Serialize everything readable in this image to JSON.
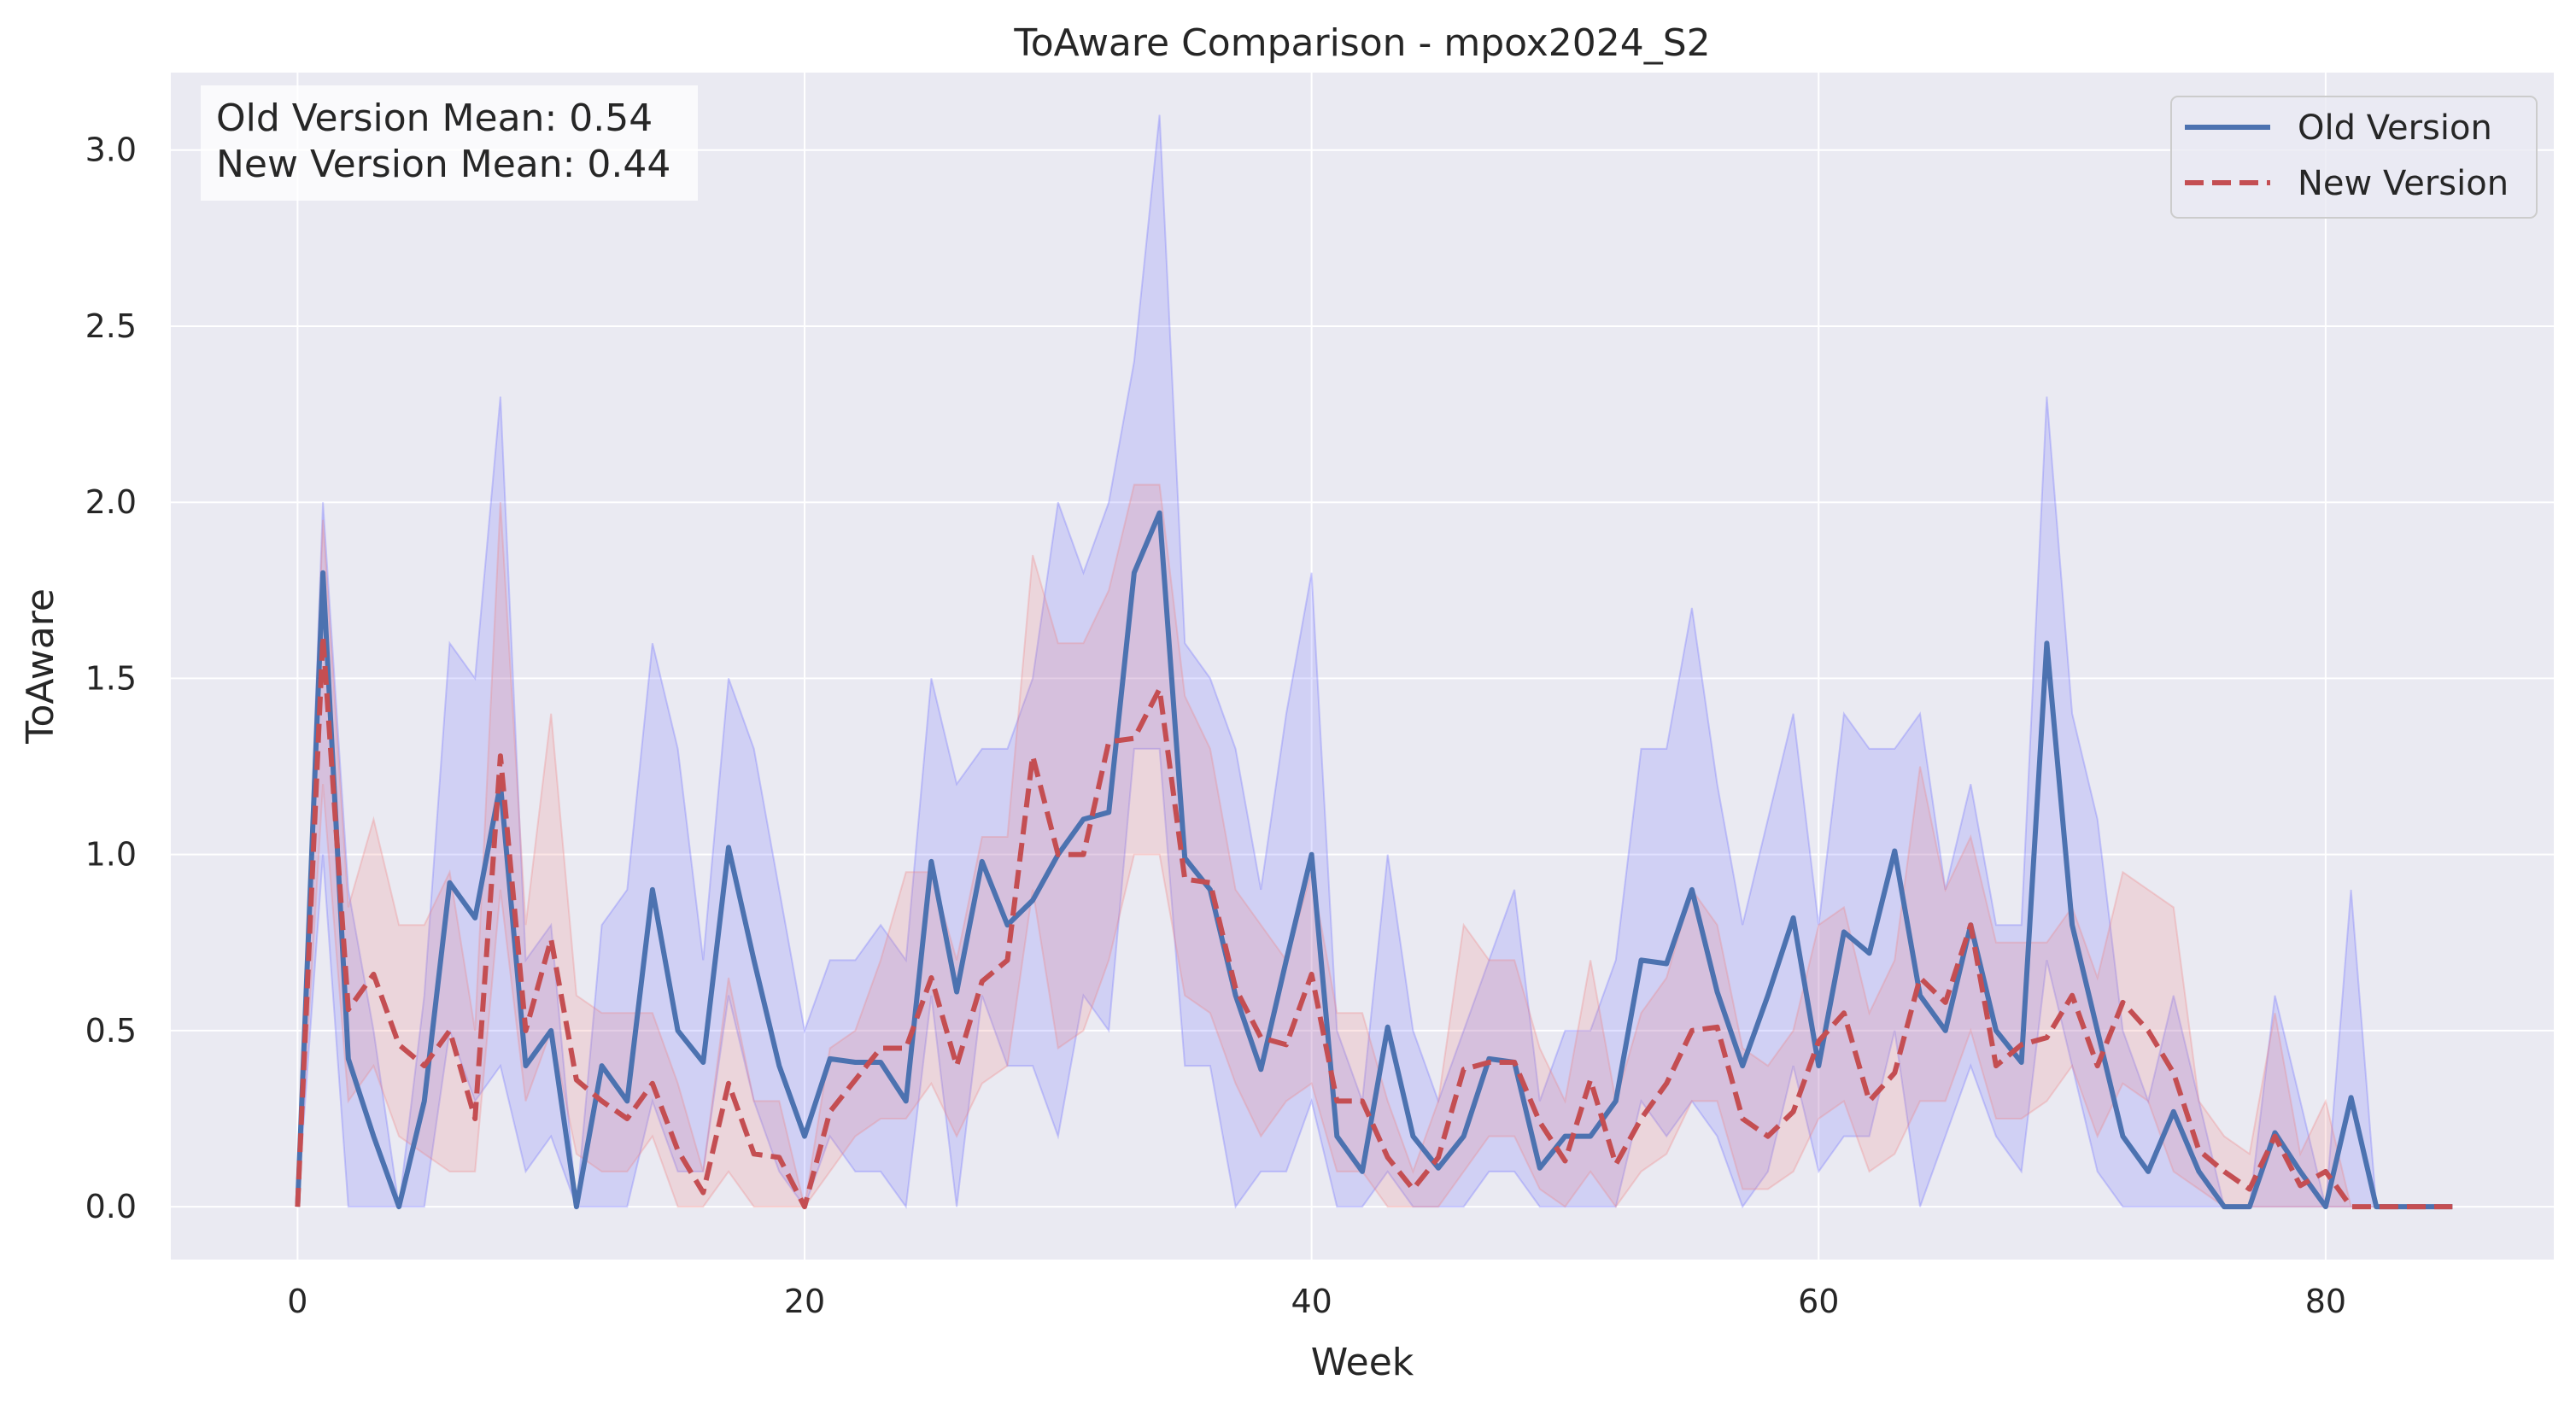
{
  "chart_data": {
    "type": "line",
    "title": "ToAware Comparison - mpox2024_S2",
    "xlabel": "Week",
    "ylabel": "ToAware",
    "xlim": [
      -5,
      89
    ],
    "ylim": [
      -0.15,
      3.22
    ],
    "xticks": [
      0,
      20,
      40,
      60,
      80
    ],
    "yticks": [
      0.0,
      0.5,
      1.0,
      1.5,
      2.0,
      2.5,
      3.0
    ],
    "grid": true,
    "legend_position": "top-right",
    "annotations": [
      "Old Version Mean: 0.54",
      "New Version Mean: 0.44"
    ],
    "x": [
      0,
      1,
      2,
      3,
      4,
      5,
      6,
      7,
      8,
      9,
      10,
      11,
      12,
      13,
      14,
      15,
      16,
      17,
      18,
      19,
      20,
      21,
      22,
      23,
      24,
      25,
      26,
      27,
      28,
      29,
      30,
      31,
      32,
      33,
      34,
      35,
      36,
      37,
      38,
      39,
      40,
      41,
      42,
      43,
      44,
      45,
      46,
      47,
      48,
      49,
      50,
      51,
      52,
      53,
      54,
      55,
      56,
      57,
      58,
      59,
      60,
      61,
      62,
      63,
      64,
      65,
      66,
      67,
      68,
      69,
      70,
      71,
      72,
      73,
      74,
      75,
      76,
      77,
      78,
      79,
      80,
      81,
      82,
      83,
      84,
      85
    ],
    "series": [
      {
        "name": "Old Version",
        "color": "#4c72b0",
        "band_color": "#6b6bff",
        "dash": "solid",
        "values": [
          0,
          1.8,
          0.42,
          0.2,
          0,
          0.3,
          0.92,
          0.82,
          1.2,
          0.4,
          0.5,
          0,
          0.4,
          0.3,
          0.9,
          0.5,
          0.41,
          1.02,
          0.7,
          0.4,
          0.2,
          0.42,
          0.41,
          0.41,
          0.3,
          0.98,
          0.61,
          0.98,
          0.8,
          0.87,
          1.0,
          1.1,
          1.12,
          1.8,
          1.97,
          0.99,
          0.9,
          0.6,
          0.39,
          0.7,
          1.0,
          0.2,
          0.1,
          0.51,
          0.2,
          0.11,
          0.2,
          0.42,
          0.41,
          0.11,
          0.2,
          0.2,
          0.3,
          0.7,
          0.69,
          0.9,
          0.61,
          0.4,
          0.6,
          0.82,
          0.4,
          0.78,
          0.72,
          1.01,
          0.6,
          0.5,
          0.8,
          0.5,
          0.41,
          1.6,
          0.8,
          0.5,
          0.2,
          0.1,
          0.27,
          0.1,
          0,
          0,
          0.21,
          0.1,
          0,
          0.31,
          0,
          0,
          0,
          0
        ],
        "lower": [
          0,
          1.0,
          0,
          0,
          0,
          0,
          0.5,
          0.3,
          0.4,
          0.1,
          0.2,
          0,
          0,
          0,
          0.3,
          0.1,
          0.1,
          0.6,
          0.3,
          0.1,
          0,
          0.2,
          0.1,
          0.1,
          0,
          0.6,
          0,
          0.6,
          0.4,
          0.4,
          0.2,
          0.6,
          0.5,
          1.3,
          1.3,
          0.4,
          0.4,
          0,
          0.1,
          0.1,
          0.3,
          0,
          0,
          0.1,
          0,
          0,
          0,
          0.1,
          0.1,
          0,
          0,
          0,
          0,
          0.3,
          0.2,
          0.3,
          0.2,
          0,
          0.1,
          0.4,
          0.1,
          0.2,
          0.2,
          0.5,
          0,
          0.2,
          0.4,
          0.2,
          0.1,
          0.7,
          0.4,
          0.1,
          0,
          0,
          0,
          0,
          0,
          0,
          0,
          0,
          0,
          0,
          0,
          0,
          0,
          0
        ],
        "upper": [
          0,
          2.0,
          0.9,
          0.5,
          0,
          0.6,
          1.6,
          1.5,
          2.3,
          0.7,
          0.8,
          0,
          0.8,
          0.9,
          1.6,
          1.3,
          0.7,
          1.5,
          1.3,
          0.9,
          0.5,
          0.7,
          0.7,
          0.8,
          0.7,
          1.5,
          1.2,
          1.3,
          1.3,
          1.5,
          2.0,
          1.8,
          2.0,
          2.4,
          3.1,
          1.6,
          1.5,
          1.3,
          0.9,
          1.4,
          1.8,
          0.5,
          0.3,
          1.0,
          0.5,
          0.3,
          0.5,
          0.7,
          0.9,
          0.3,
          0.5,
          0.5,
          0.7,
          1.3,
          1.3,
          1.7,
          1.2,
          0.8,
          1.1,
          1.4,
          0.8,
          1.4,
          1.3,
          1.3,
          1.4,
          0.9,
          1.2,
          0.8,
          0.8,
          2.3,
          1.4,
          1.1,
          0.5,
          0.3,
          0.6,
          0.3,
          0,
          0,
          0.6,
          0.3,
          0,
          0.9,
          0,
          0,
          0,
          0
        ],
        "band_visible": true
      },
      {
        "name": "New Version",
        "color": "#c44e52",
        "band_color": "#f08080",
        "dash": "dashed",
        "values": [
          0,
          1.62,
          0.56,
          0.66,
          0.46,
          0.4,
          0.5,
          0.25,
          1.28,
          0.5,
          0.76,
          0.36,
          0.3,
          0.25,
          0.35,
          0.16,
          0.04,
          0.35,
          0.15,
          0.14,
          0,
          0.27,
          0.36,
          0.45,
          0.45,
          0.65,
          0.4,
          0.64,
          0.7,
          1.28,
          1.0,
          1.0,
          1.32,
          1.33,
          1.47,
          0.93,
          0.92,
          0.62,
          0.48,
          0.46,
          0.66,
          0.3,
          0.3,
          0.14,
          0.05,
          0.14,
          0.39,
          0.41,
          0.41,
          0.24,
          0.13,
          0.36,
          0.12,
          0.25,
          0.35,
          0.5,
          0.51,
          0.25,
          0.2,
          0.27,
          0.47,
          0.55,
          0.3,
          0.38,
          0.65,
          0.58,
          0.8,
          0.4,
          0.46,
          0.48,
          0.6,
          0.4,
          0.58,
          0.5,
          0.38,
          0.16,
          0.1,
          0.05,
          0.2,
          0.06,
          0.1,
          0,
          0,
          0,
          0,
          0
        ],
        "lower": [
          0,
          1.2,
          0.3,
          0.4,
          0.2,
          0.15,
          0.1,
          0.1,
          0.9,
          0.3,
          0.5,
          0.15,
          0.1,
          0.1,
          0.2,
          0,
          0,
          0.1,
          0,
          0,
          0,
          0.1,
          0.2,
          0.25,
          0.25,
          0.35,
          0.2,
          0.35,
          0.4,
          0.9,
          0.45,
          0.5,
          0.7,
          1.0,
          1.0,
          0.6,
          0.55,
          0.35,
          0.2,
          0.3,
          0.35,
          0.1,
          0.1,
          0,
          0,
          0,
          0.1,
          0.2,
          0.2,
          0.05,
          0,
          0.1,
          0,
          0.1,
          0.15,
          0.3,
          0.3,
          0.05,
          0.05,
          0.1,
          0.25,
          0.3,
          0.1,
          0.15,
          0.3,
          0.3,
          0.5,
          0.25,
          0.25,
          0.3,
          0.4,
          0.2,
          0.35,
          0.3,
          0.1,
          0.05,
          0,
          0,
          0,
          0,
          0,
          0,
          0,
          0,
          0,
          0
        ],
        "upper": [
          0,
          1.95,
          0.85,
          1.1,
          0.8,
          0.8,
          0.95,
          0.5,
          2.0,
          0.8,
          1.4,
          0.6,
          0.55,
          0.55,
          0.55,
          0.35,
          0.1,
          0.65,
          0.3,
          0.3,
          0,
          0.45,
          0.5,
          0.7,
          0.95,
          0.95,
          0.7,
          1.05,
          1.05,
          1.85,
          1.6,
          1.6,
          1.75,
          2.05,
          2.05,
          1.45,
          1.3,
          0.9,
          0.8,
          0.7,
          0.95,
          0.55,
          0.55,
          0.3,
          0.1,
          0.3,
          0.8,
          0.7,
          0.7,
          0.45,
          0.3,
          0.7,
          0.3,
          0.55,
          0.65,
          0.9,
          0.8,
          0.45,
          0.4,
          0.5,
          0.8,
          0.85,
          0.55,
          0.7,
          1.25,
          0.9,
          1.05,
          0.75,
          0.75,
          0.75,
          0.85,
          0.65,
          0.95,
          0.9,
          0.85,
          0.3,
          0.2,
          0.15,
          0.55,
          0.15,
          0.3,
          0,
          0,
          0,
          0,
          0
        ],
        "band_visible": true
      }
    ]
  }
}
